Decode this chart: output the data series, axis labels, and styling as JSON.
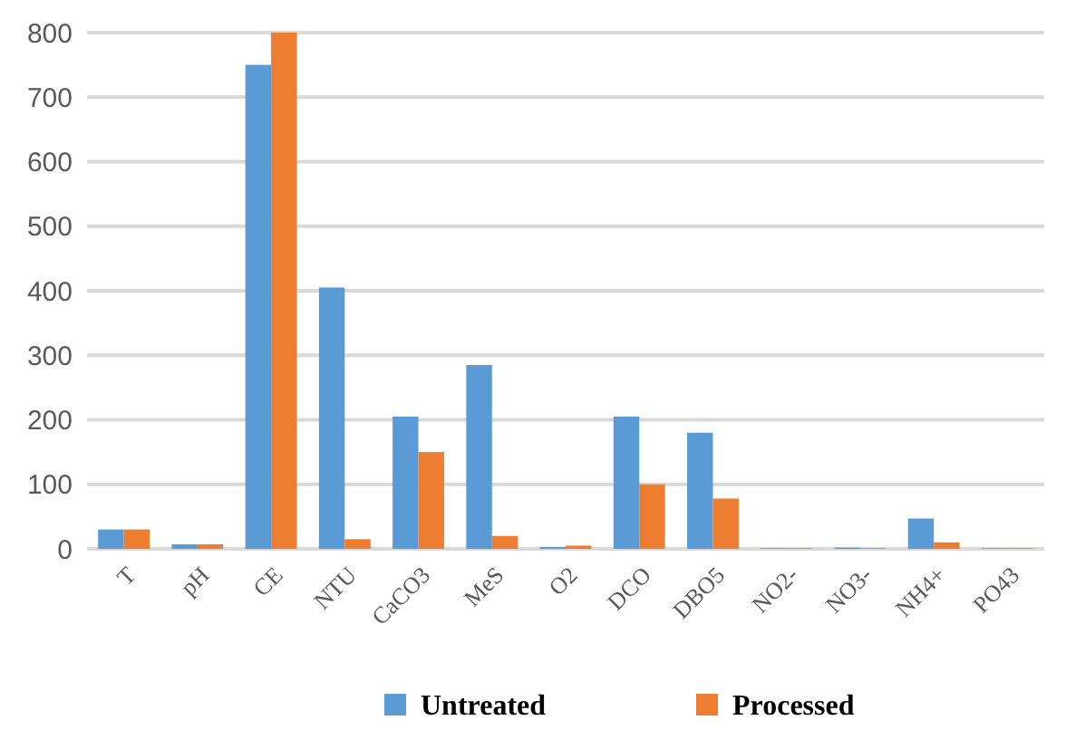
{
  "chart_data": {
    "type": "bar",
    "categories": [
      "T",
      "pH",
      "CE",
      "NTU",
      "CaCO3",
      "MeS",
      "O2",
      "DCO",
      "DBO5",
      "NO2-",
      "NO3-",
      "NH4+",
      "PO43"
    ],
    "series": [
      {
        "name": "Untreated",
        "color": "#5b9bd5",
        "values": [
          30,
          7,
          750,
          405,
          205,
          285,
          3,
          205,
          180,
          1,
          2,
          47,
          1
        ]
      },
      {
        "name": "Processed",
        "color": "#ed7d31",
        "values": [
          30,
          7,
          800,
          15,
          150,
          20,
          5,
          100,
          78,
          1,
          1,
          10,
          1
        ]
      }
    ],
    "ylim": [
      0,
      800
    ],
    "yticks": [
      0,
      100,
      200,
      300,
      400,
      500,
      600,
      700,
      800
    ],
    "grid": "y",
    "legend": "bottom"
  }
}
